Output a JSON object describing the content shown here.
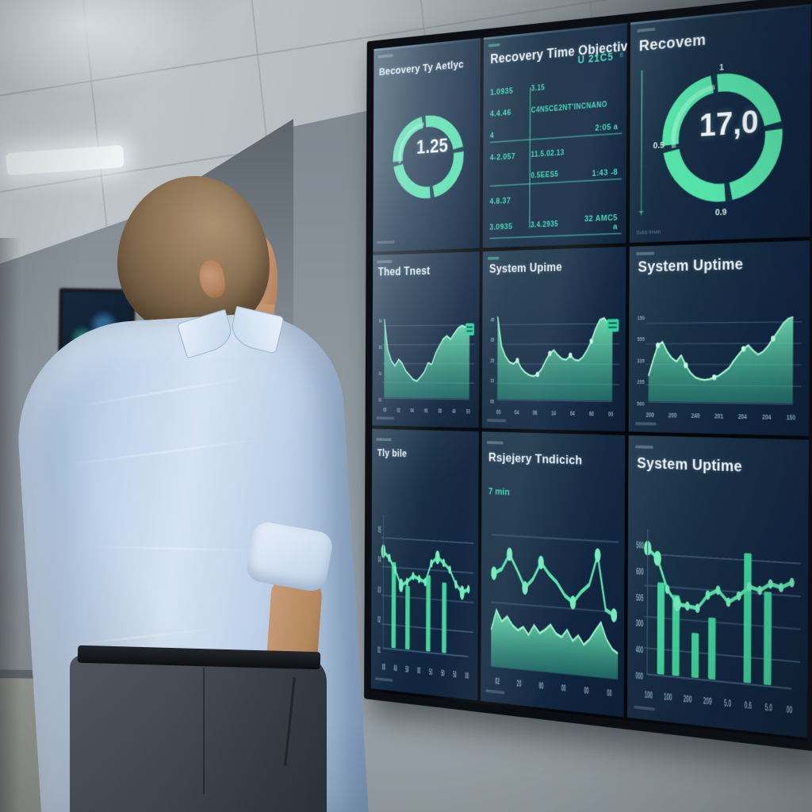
{
  "colors": {
    "accent": "#45e0a6",
    "teal_text": "#3fd9b5",
    "panel_bg": "#14293e",
    "title": "#eef4f8"
  },
  "wall": {
    "panels": [
      {
        "id": "gauge-left",
        "type": "gauge",
        "title": "Becovery Ty Aetlyc",
        "value": "1.25",
        "ticks": {}
      },
      {
        "id": "rto-table",
        "type": "table",
        "title": "Recovery Time Objective",
        "header_right": "U 21C5",
        "header_mark": "8",
        "rows": [
          {
            "c1": "1.0935",
            "c2": "3.15",
            "c3": "",
            "rule": false
          },
          {
            "c1": "4.4.46",
            "c2": "C4N5CE2NT'INCNANO",
            "c3": "",
            "rule": false
          },
          {
            "c1": "4",
            "c2": "",
            "c3": "2:05  a",
            "rule": true
          },
          {
            "c1": "4-2.057",
            "c2": "11.5.02.13",
            "c3": "",
            "rule": false
          },
          {
            "c1": "",
            "c2": "0.5EES5",
            "c3": "1:43  -8",
            "rule": true
          },
          {
            "c1": "4.8.37",
            "c2": "",
            "c3": "",
            "rule": false
          },
          {
            "c1": "3.0935",
            "c2": "3.4.2935",
            "c3": "32 AMC5  a",
            "rule": true
          }
        ]
      },
      {
        "id": "gauge-right",
        "type": "gauge",
        "title": "Recovem",
        "value": "17,0",
        "ticks": {
          "top": "1",
          "left": "0.5",
          "bottom": "0.9"
        },
        "footer": "Subs timah"
      },
      {
        "id": "area-1",
        "type": "area",
        "title": "Thed Tnest",
        "values": [
          95,
          58,
          44,
          38,
          46,
          41,
          32,
          27,
          22,
          20,
          25,
          31,
          42,
          40,
          53,
          62,
          70,
          74,
          70,
          77,
          83,
          86,
          84,
          86
        ],
        "xlabels": [
          "00",
          "02",
          "04",
          "06",
          "08",
          "40",
          "50"
        ],
        "ylabels": [
          "04",
          "03",
          "02",
          "01"
        ],
        "badge": true
      },
      {
        "id": "area-2",
        "type": "area",
        "title": "System Upime",
        "values": [
          96,
          62,
          50,
          43,
          41,
          45,
          36,
          31,
          28,
          27,
          29,
          35,
          45,
          53,
          57,
          51,
          47,
          46,
          51,
          46,
          45,
          49,
          57,
          67,
          81,
          91,
          93,
          87,
          83
        ],
        "dots": [
          5,
          10,
          13,
          18,
          23
        ],
        "xlabels": [
          "00",
          "04",
          "06",
          "14",
          "04",
          "60",
          "00"
        ],
        "ylabels": [
          "45",
          "35",
          "25",
          "15",
          "05"
        ],
        "badge": true
      },
      {
        "id": "area-3",
        "type": "area",
        "title": "System Uptime",
        "values": [
          28,
          46,
          62,
          66,
          55,
          48,
          44,
          51,
          40,
          32,
          27,
          25,
          24,
          25,
          27,
          29,
          33,
          37,
          45,
          52,
          58,
          62,
          56,
          52,
          55,
          61,
          69,
          77,
          85,
          90,
          92
        ],
        "dots": [
          2,
          8,
          14,
          20,
          26
        ],
        "xlabels": [
          "200",
          "200",
          "240",
          "201",
          "204",
          "204",
          "150"
        ],
        "ylabels": [
          "150",
          "555",
          "335",
          "255",
          "500"
        ]
      },
      {
        "id": "combo-1",
        "type": "line-bars",
        "title": "Tly bile",
        "line": [
          76,
          71,
          62,
          50,
          53,
          58,
          56,
          54,
          69,
          74,
          70,
          65,
          54,
          48,
          51
        ],
        "big_dots": [
          0,
          3,
          9,
          13
        ],
        "bars": {
          "positions": [
            0.13,
            0.3,
            0.55,
            0.74
          ],
          "heights": [
            0.57,
            0.42,
            0.5,
            0.46
          ]
        },
        "xlabels": [
          "00",
          "40",
          "50",
          "00",
          "50",
          "50",
          "50",
          "00"
        ],
        "ylabels": [
          "05",
          "04",
          "03",
          "02",
          "01"
        ]
      },
      {
        "id": "ridge",
        "type": "line-area",
        "title": "Rsjejery Tndicich",
        "subtitle": "7 min",
        "line": [
          60,
          63,
          73,
          63,
          52,
          58,
          69,
          62,
          57,
          49,
          45,
          52,
          57,
          76,
          42,
          39
        ],
        "big_dots": [
          0,
          2,
          4,
          6,
          10,
          13,
          15
        ],
        "area": [
          40,
          62,
          50,
          56,
          47,
          42,
          46,
          38,
          49,
          41,
          45,
          51,
          42,
          39,
          47,
          36,
          42,
          33,
          39,
          49,
          58,
          41,
          31,
          27
        ],
        "xlabels": [
          "02",
          "20",
          "00",
          "00",
          "00",
          "00"
        ]
      },
      {
        "id": "combo-2",
        "type": "line-bars",
        "title": "System Uptime",
        "line": [
          91,
          84,
          62,
          52,
          51,
          50,
          60,
          64,
          56,
          61,
          68,
          66,
          71,
          69,
          73
        ],
        "big_dots": [
          0,
          1,
          3
        ],
        "bars": {
          "positions": [
            0.1,
            0.21,
            0.35,
            0.47,
            0.72,
            0.86
          ],
          "heights": [
            0.56,
            0.49,
            0.27,
            0.37,
            0.77,
            0.55
          ]
        },
        "xlabels": [
          "100",
          "100",
          "200",
          "209",
          "5.0",
          "0.6",
          "5.0",
          "00"
        ],
        "ylabels": [
          "500",
          "600",
          "505",
          "300",
          "400",
          "000"
        ]
      }
    ]
  }
}
